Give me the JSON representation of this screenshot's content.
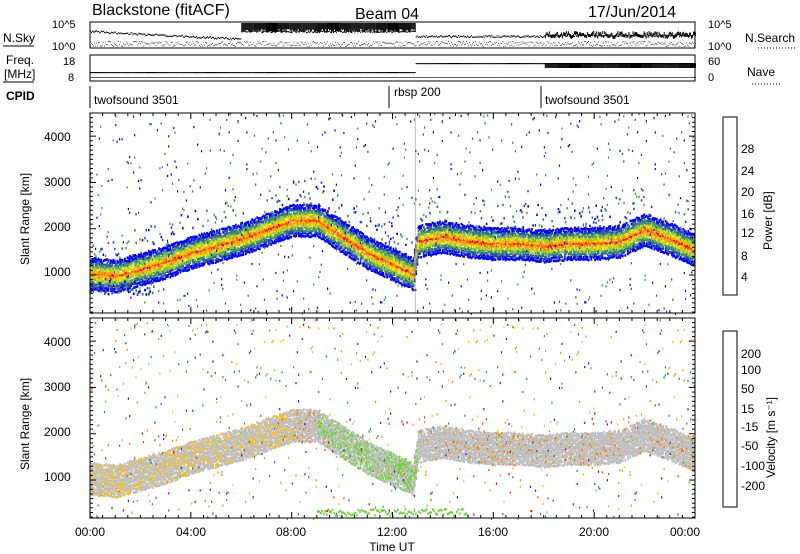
{
  "header": {
    "station": "Blackstone (fitACF)",
    "beam": "Beam 04",
    "date": "17/Jun/2014"
  },
  "status_panels": {
    "nsky_label": "N.Sky",
    "nsearch_label": "N.Search",
    "noise_ticks": [
      "10^5",
      "10^0"
    ],
    "freq_label_1": "Freq.",
    "freq_label_2": "[MHz]",
    "freq_ticks": [
      "18",
      "8"
    ],
    "nave_label": "Nave",
    "nave_ticks": [
      "60",
      "0"
    ],
    "cpid_label": "CPID",
    "cpid_segments": [
      {
        "name": "twofsound 3501",
        "start_hour": 0,
        "end_hour": 12.9
      },
      {
        "name": "rbsp 200",
        "start_hour": 12.9,
        "end_hour": 18.0
      },
      {
        "name": "twofsound 3501",
        "start_hour": 18.0,
        "end_hour": 24
      }
    ]
  },
  "axes": {
    "x_label": "Time UT",
    "x_ticks": [
      "00:00",
      "04:00",
      "08:00",
      "12:00",
      "16:00",
      "20:00",
      "00:00"
    ],
    "y_label": "Slant Range [km]",
    "y_ticks": [
      "1000",
      "2000",
      "3000",
      "4000"
    ]
  },
  "colorbars": {
    "power": {
      "label": "Power [dB]",
      "ticks": [
        "4",
        "8",
        "12",
        "16",
        "20",
        "24",
        "28"
      ],
      "colors": [
        "#0000ff",
        "#2a50b0",
        "#3c8070",
        "#5aaa50",
        "#9ccc30",
        "#e8dc00",
        "#ffa000",
        "#ff6000",
        "#ff0000"
      ]
    },
    "velocity": {
      "label": "Velocity [m s⁻¹]",
      "ticks": [
        "200",
        "100",
        "50",
        "15",
        "-15",
        "-50",
        "-100",
        "-200"
      ],
      "colors": [
        "#2020b0",
        "#2f6fa0",
        "#2f8f5f",
        "#70d040",
        "#bebebe",
        "#ffc000",
        "#ff8000",
        "#ff4000",
        "#e00000"
      ]
    }
  },
  "chart_data": [
    {
      "type": "heatmap",
      "title": "Power [dB]",
      "xlabel": "Time UT",
      "ylabel": "Slant Range [km]",
      "xlim": [
        0,
        24
      ],
      "ylim": [
        180,
        4500
      ],
      "colorbar_range": [
        0,
        30
      ],
      "band_center_km": [
        {
          "hour": 0,
          "range": 1050
        },
        {
          "hour": 1,
          "range": 1000
        },
        {
          "hour": 2,
          "range": 1150
        },
        {
          "hour": 3,
          "range": 1300
        },
        {
          "hour": 4,
          "range": 1500
        },
        {
          "hour": 5,
          "range": 1650
        },
        {
          "hour": 6,
          "range": 1800
        },
        {
          "hour": 7,
          "range": 2000
        },
        {
          "hour": 8,
          "range": 2200
        },
        {
          "hour": 9,
          "range": 2200
        },
        {
          "hour": 10,
          "range": 1850
        },
        {
          "hour": 11,
          "range": 1500
        },
        {
          "hour": 12,
          "range": 1250
        },
        {
          "hour": 12.8,
          "range": 1050
        },
        {
          "hour": 13,
          "range": 1750
        },
        {
          "hour": 14,
          "range": 1850
        },
        {
          "hour": 15,
          "range": 1750
        },
        {
          "hour": 16,
          "range": 1700
        },
        {
          "hour": 17,
          "range": 1700
        },
        {
          "hour": 18,
          "range": 1650
        },
        {
          "hour": 19,
          "range": 1700
        },
        {
          "hour": 20,
          "range": 1700
        },
        {
          "hour": 21,
          "range": 1750
        },
        {
          "hour": 22,
          "range": 2000
        },
        {
          "hour": 23,
          "range": 1800
        },
        {
          "hour": 24,
          "range": 1550
        }
      ],
      "band_peak_power_db": 28
    },
    {
      "type": "heatmap",
      "title": "Velocity [m s⁻¹]",
      "xlabel": "Time UT",
      "ylabel": "Slant Range [km]",
      "xlim": [
        0,
        24
      ],
      "ylim": [
        180,
        4500
      ],
      "colorbar_range": [
        -200,
        200
      ],
      "dominant_velocity_class": "-15 to 15",
      "note_ground_scatter": "grey band"
    }
  ]
}
